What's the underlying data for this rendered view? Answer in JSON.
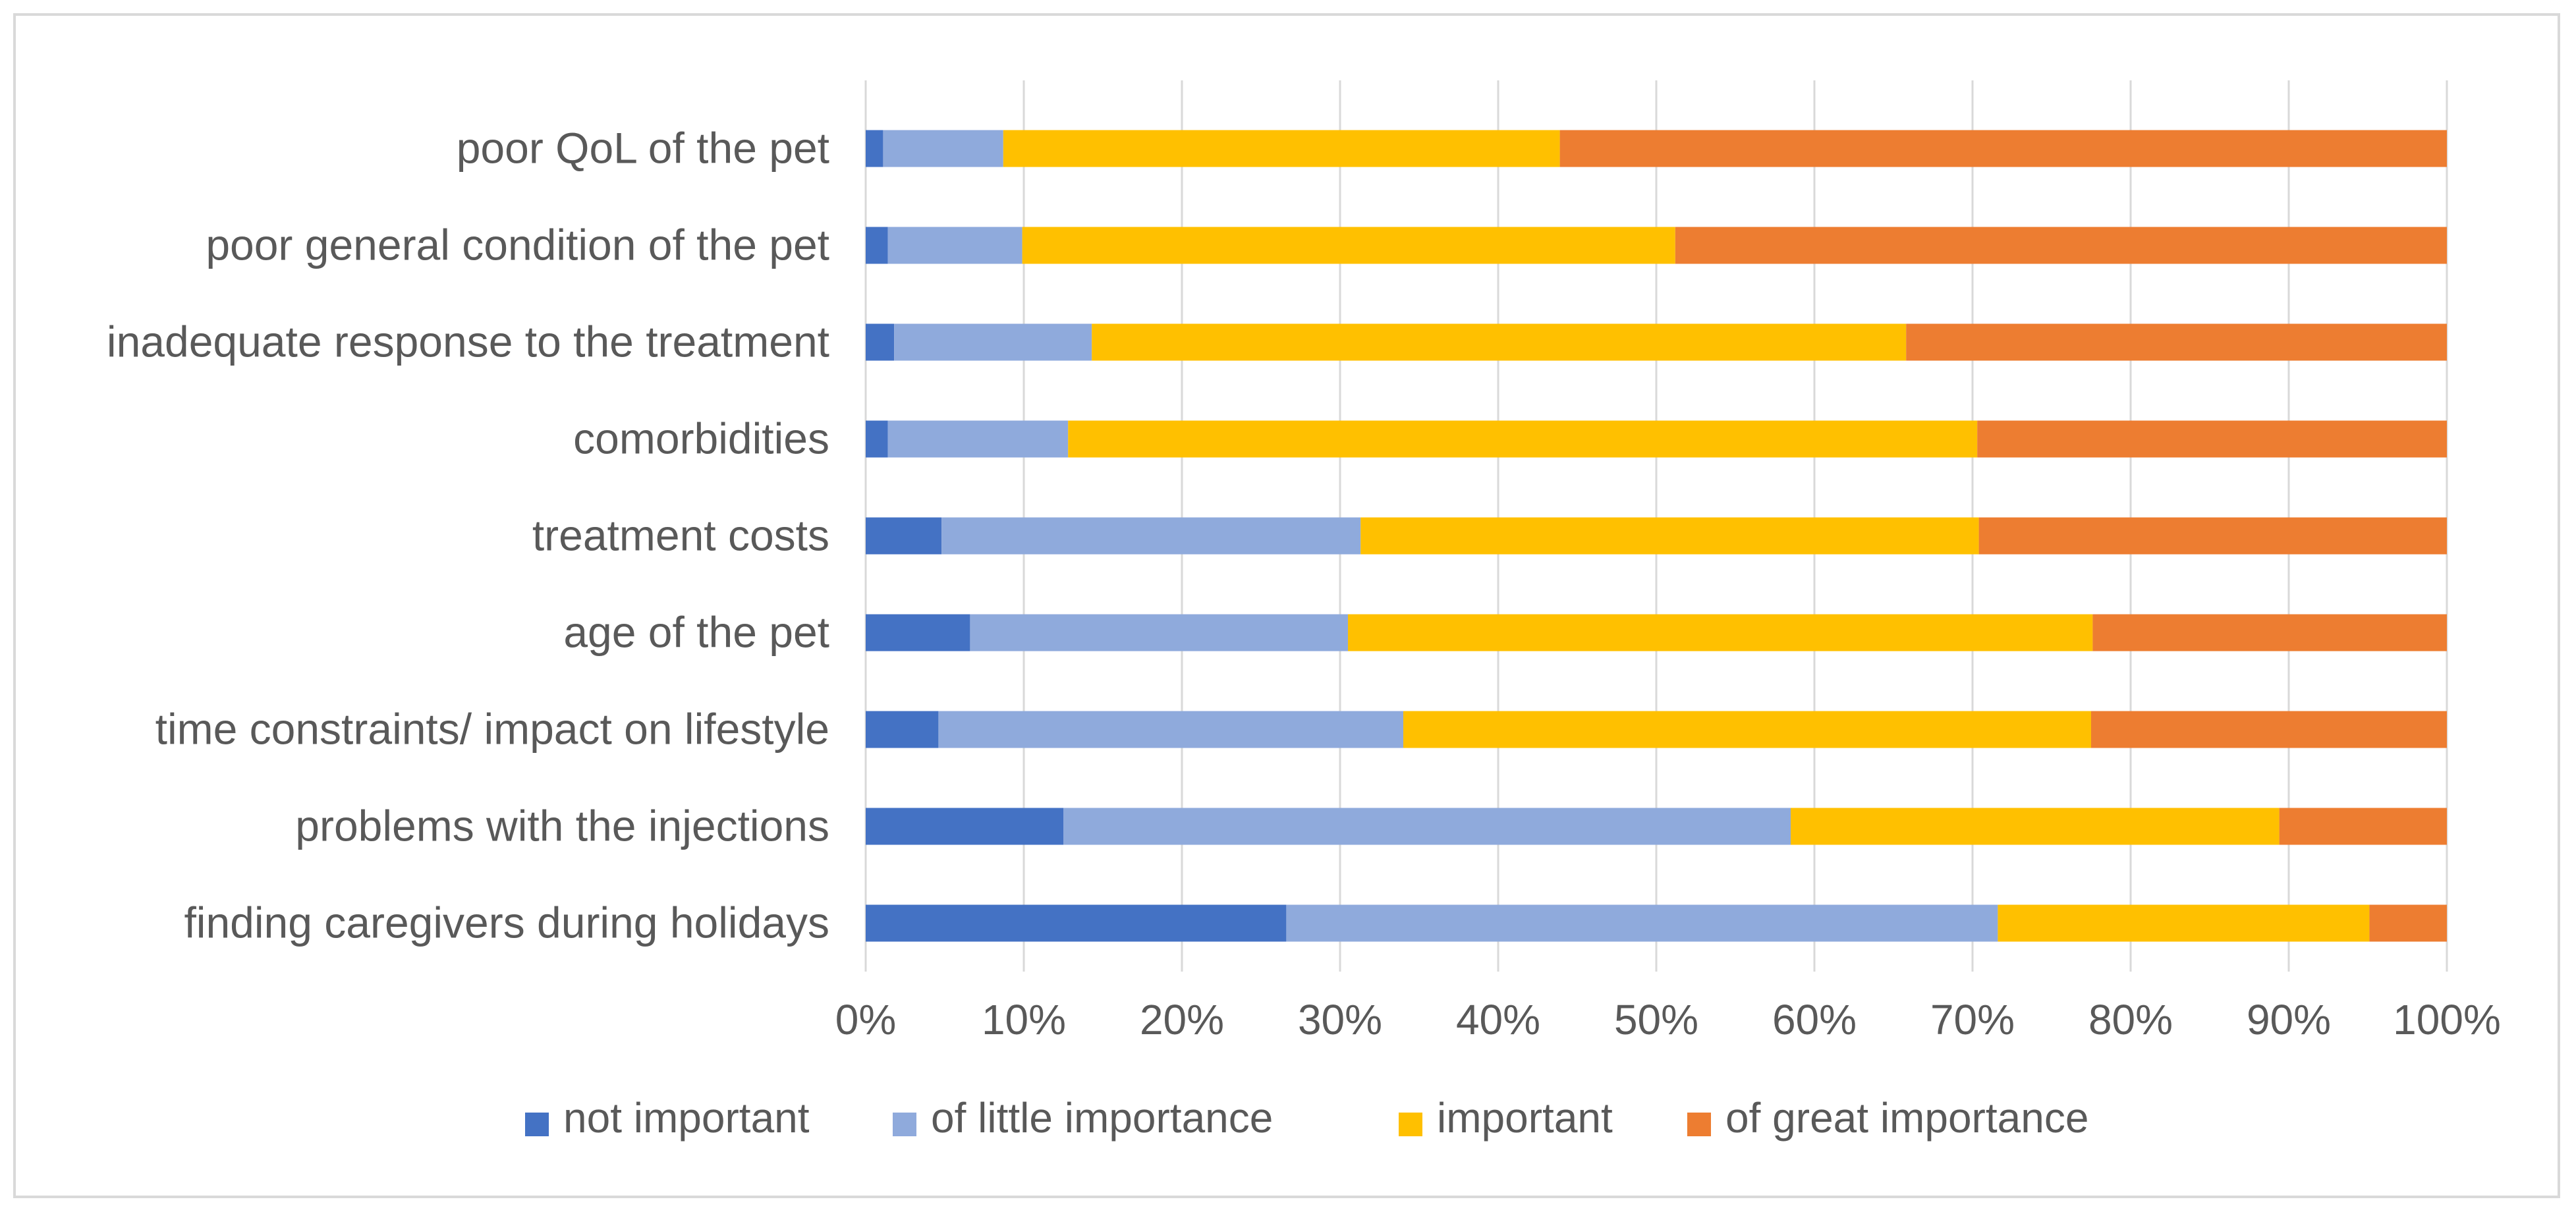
{
  "chart_data": {
    "type": "bar",
    "orientation": "horizontal",
    "stacked": "percent",
    "title": "",
    "xlabel": "",
    "ylabel": "",
    "xlim": [
      0,
      100
    ],
    "grid": true,
    "legend_position": "bottom",
    "categories": [
      "poor QoL of the pet",
      "poor general condition of the pet",
      "inadequate response to the treatment",
      "comorbidities",
      "treatment costs",
      "age of the pet",
      "time constraints/ impact on lifestyle",
      "problems with the injections",
      "finding caregivers during holidays"
    ],
    "x_ticks": [
      "0%",
      "10%",
      "20%",
      "30%",
      "40%",
      "50%",
      "60%",
      "70%",
      "80%",
      "90%",
      "100%"
    ],
    "series": [
      {
        "name": "not important",
        "color": "#4472c4",
        "values": [
          1.1,
          1.4,
          1.8,
          1.4,
          4.8,
          6.6,
          4.6,
          12.5,
          26.6
        ]
      },
      {
        "name": "of little importance",
        "color": "#8faadc",
        "values": [
          7.6,
          8.5,
          12.5,
          11.4,
          26.5,
          23.9,
          29.4,
          46.0,
          45.0
        ]
      },
      {
        "name": "important",
        "color": "#ffc000",
        "values": [
          35.2,
          41.3,
          51.5,
          57.5,
          39.1,
          47.1,
          43.5,
          30.9,
          23.5
        ]
      },
      {
        "name": "of great importance",
        "color": "#ed7d31",
        "values": [
          56.1,
          48.8,
          34.2,
          29.7,
          29.6,
          22.4,
          22.5,
          10.6,
          4.9
        ]
      }
    ]
  }
}
